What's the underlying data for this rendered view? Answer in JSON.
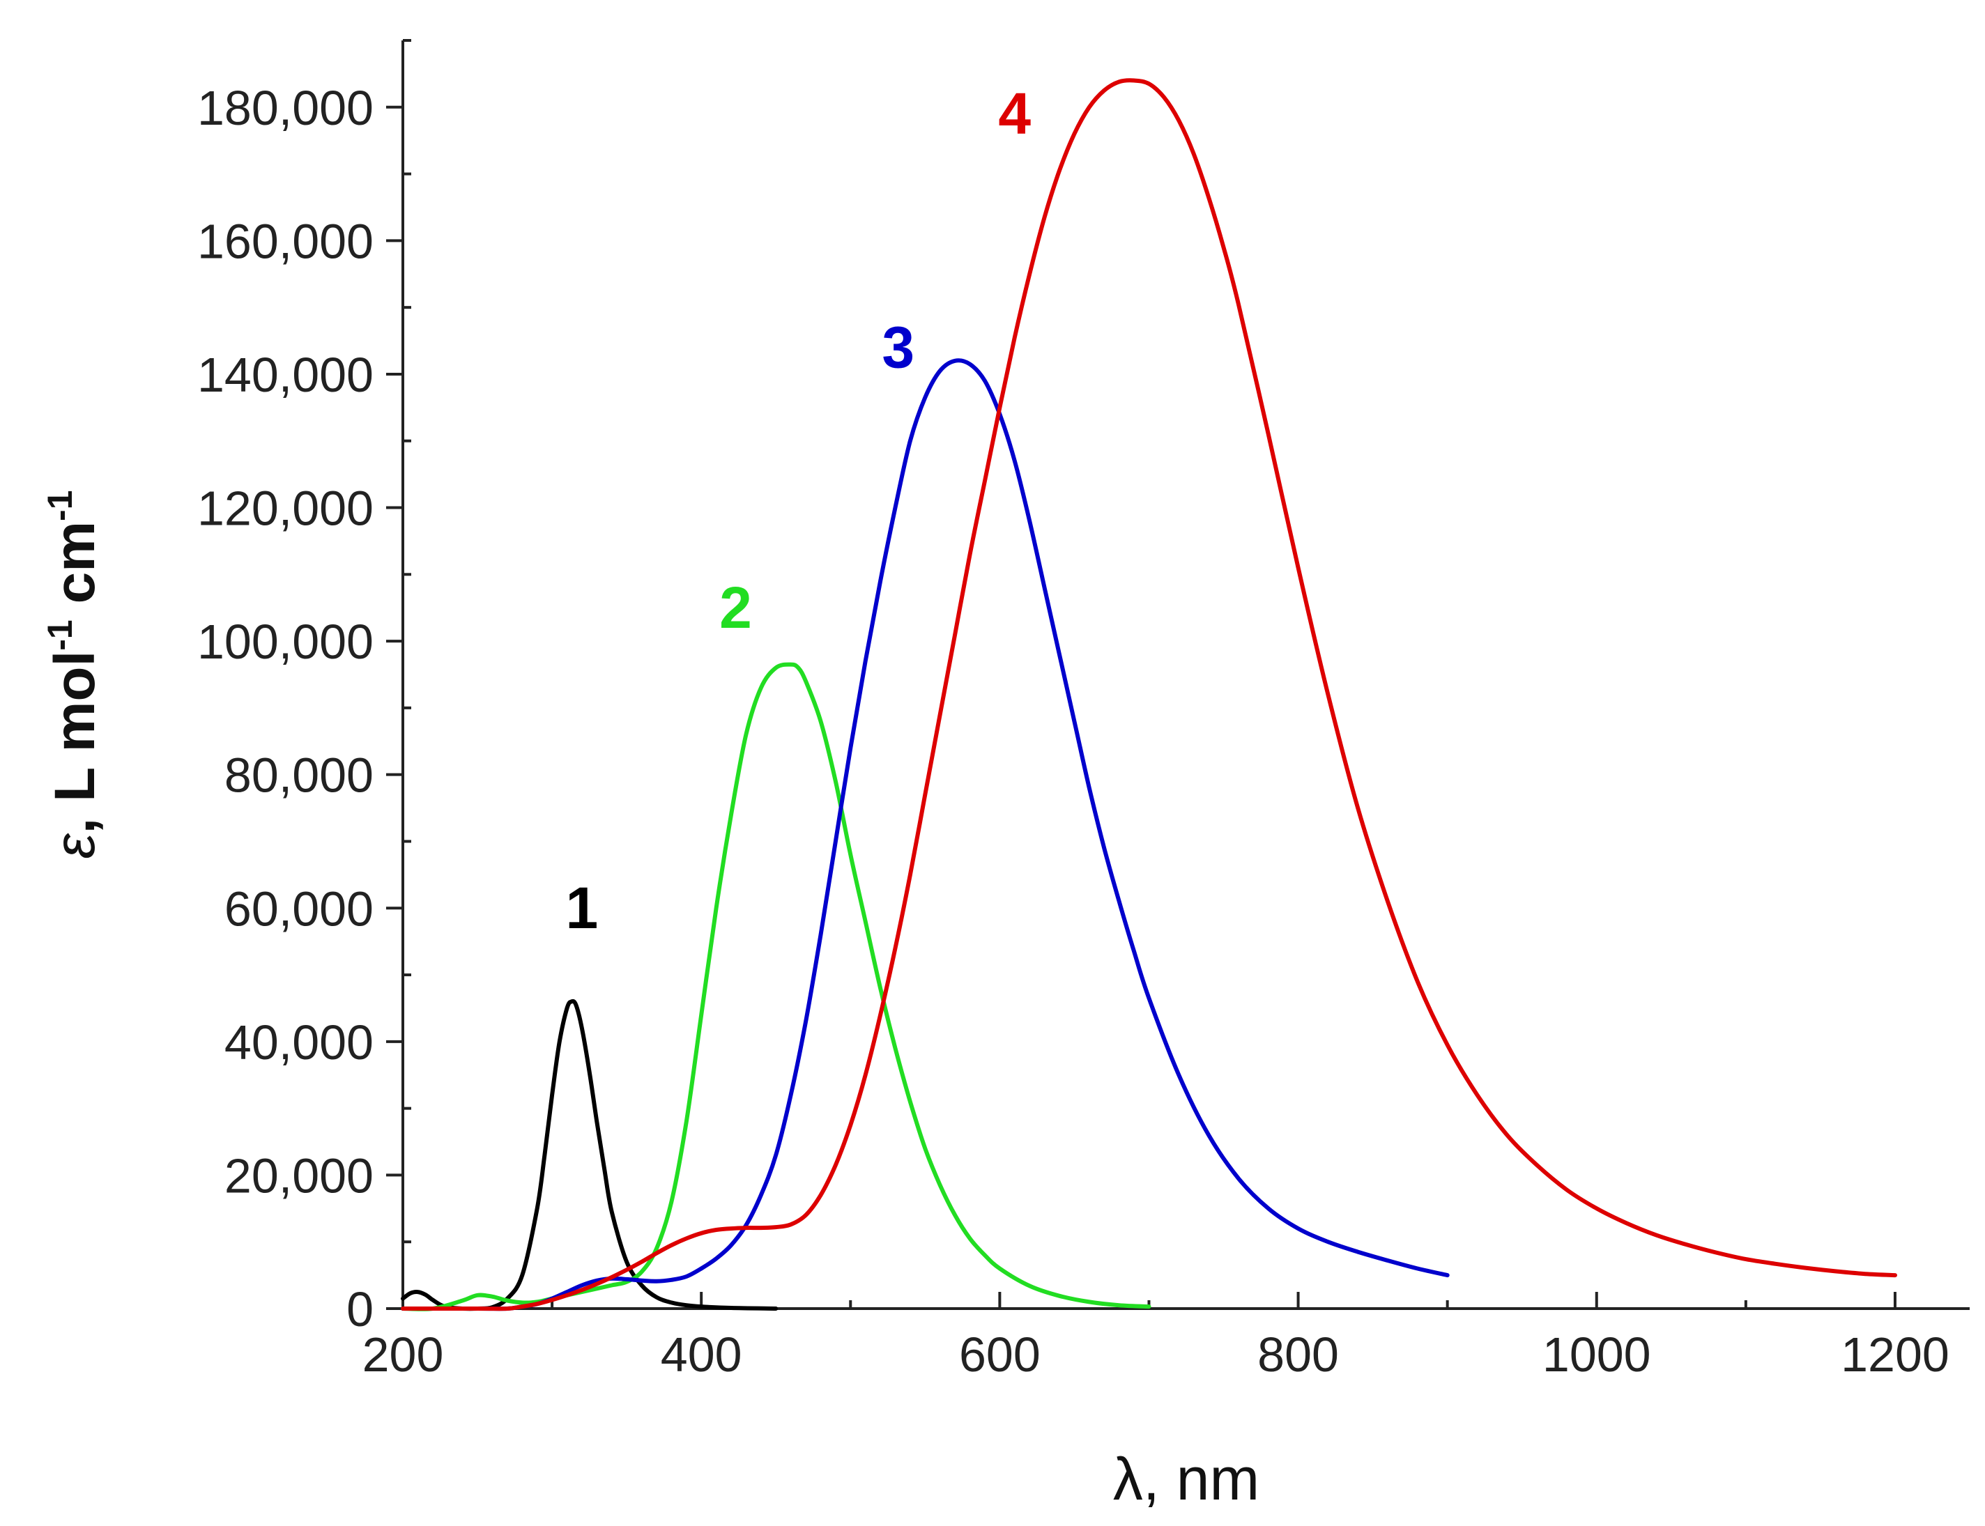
{
  "chart_data": {
    "type": "line",
    "title": "",
    "xlabel": "λ, nm",
    "ylabel": {
      "epsilon": "ε",
      "main": ", L mol",
      "sup1": "-1",
      "unit": " cm",
      "sup2": "-1"
    },
    "xlim": [
      200,
      1250
    ],
    "ylim": [
      0,
      190000
    ],
    "x_ticks": [
      200,
      400,
      600,
      800,
      1000,
      1200
    ],
    "x_tick_labels": [
      "200",
      "400",
      "600",
      "800",
      "1000",
      "1200"
    ],
    "x_minor_step": 100,
    "y_ticks": [
      0,
      20000,
      40000,
      60000,
      80000,
      100000,
      120000,
      140000,
      160000,
      180000
    ],
    "y_tick_labels": [
      "0",
      "20,000",
      "40,000",
      "60,000",
      "80,000",
      "100,000",
      "120,000",
      "140,000",
      "160,000",
      "180,000"
    ],
    "y_minor_step": 10000,
    "grid": false,
    "legend": "none",
    "series": [
      {
        "name": "1",
        "color": "#000000",
        "label_pos": {
          "x": 320,
          "y": 57000
        },
        "x": [
          200,
          205,
          210,
          215,
          220,
          225,
          230,
          240,
          250,
          260,
          270,
          280,
          290,
          295,
          300,
          305,
          310,
          313,
          316,
          320,
          325,
          330,
          335,
          340,
          350,
          360,
          370,
          380,
          390,
          400,
          420,
          450
        ],
        "y": [
          1500,
          2300,
          2500,
          2100,
          1300,
          600,
          200,
          0,
          0,
          200,
          1500,
          5000,
          15000,
          23000,
          32000,
          40000,
          45000,
          46000,
          45500,
          42000,
          35500,
          28000,
          21000,
          14500,
          7000,
          3500,
          1700,
          900,
          500,
          300,
          100,
          0
        ]
      },
      {
        "name": "2",
        "color": "#22dd22",
        "label_pos": {
          "x": 423,
          "y": 102000
        },
        "x": [
          200,
          220,
          240,
          250,
          260,
          270,
          280,
          290,
          300,
          310,
          320,
          330,
          340,
          350,
          360,
          370,
          380,
          390,
          400,
          410,
          420,
          430,
          440,
          450,
          460,
          465,
          470,
          480,
          490,
          500,
          510,
          520,
          530,
          540,
          550,
          560,
          570,
          580,
          590,
          600,
          620,
          640,
          660,
          680,
          700
        ],
        "y": [
          0,
          0,
          1200,
          2000,
          1800,
          1200,
          900,
          1000,
          1500,
          2000,
          2500,
          3000,
          3500,
          4000,
          5500,
          9000,
          16000,
          28000,
          44000,
          60000,
          74000,
          86000,
          93000,
          96000,
          96500,
          96000,
          94000,
          88000,
          79000,
          68000,
          58000,
          48000,
          39000,
          31000,
          24000,
          18500,
          14000,
          10500,
          8000,
          6000,
          3400,
          1900,
          1000,
          500,
          300
        ]
      },
      {
        "name": "3",
        "color": "#0000cc",
        "label_pos": {
          "x": 532,
          "y": 141000
        },
        "x": [
          200,
          250,
          270,
          280,
          290,
          300,
          310,
          320,
          330,
          340,
          350,
          360,
          370,
          380,
          390,
          400,
          410,
          420,
          430,
          440,
          450,
          460,
          470,
          480,
          490,
          500,
          510,
          520,
          530,
          540,
          550,
          560,
          570,
          580,
          590,
          600,
          610,
          620,
          630,
          640,
          650,
          660,
          670,
          680,
          690,
          700,
          720,
          740,
          760,
          780,
          800,
          820,
          840,
          860,
          880,
          900
        ],
        "y": [
          0,
          0,
          0,
          300,
          700,
          1500,
          2500,
          3500,
          4200,
          4500,
          4400,
          4200,
          4100,
          4300,
          4800,
          6000,
          7500,
          9500,
          12500,
          17000,
          23000,
          32000,
          43000,
          56000,
          70000,
          84000,
          97000,
          109000,
          120000,
          130000,
          136500,
          140500,
          142000,
          141500,
          139000,
          134000,
          127000,
          118000,
          108000,
          98000,
          88000,
          78000,
          69000,
          61000,
          53500,
          46500,
          35000,
          26000,
          19500,
          15000,
          12000,
          10000,
          8500,
          7200,
          6000,
          5000
        ]
      },
      {
        "name": "4",
        "color": "#dd0000",
        "label_pos": {
          "x": 610,
          "y": 176000
        },
        "x": [
          200,
          250,
          270,
          280,
          290,
          300,
          310,
          320,
          330,
          340,
          350,
          360,
          370,
          380,
          390,
          400,
          410,
          420,
          430,
          440,
          450,
          460,
          470,
          480,
          490,
          500,
          510,
          520,
          530,
          540,
          550,
          560,
          570,
          580,
          590,
          600,
          610,
          620,
          630,
          640,
          650,
          660,
          670,
          680,
          690,
          700,
          710,
          720,
          730,
          740,
          750,
          760,
          780,
          800,
          820,
          840,
          860,
          880,
          900,
          920,
          940,
          960,
          980,
          1000,
          1020,
          1040,
          1060,
          1080,
          1100,
          1120,
          1140,
          1160,
          1180,
          1200
        ],
        "y": [
          0,
          0,
          0,
          300,
          700,
          1300,
          2000,
          2800,
          3700,
          4700,
          5800,
          7000,
          8300,
          9500,
          10500,
          11300,
          11800,
          12000,
          12100,
          12100,
          12200,
          12600,
          14000,
          17000,
          21500,
          27500,
          35000,
          44000,
          54000,
          65000,
          77000,
          89000,
          101000,
          113000,
          124000,
          135000,
          145500,
          155000,
          163500,
          170500,
          176000,
          180000,
          182500,
          183800,
          184000,
          183500,
          181500,
          178000,
          173000,
          166500,
          159000,
          150500,
          131000,
          111000,
          92000,
          75000,
          61000,
          49000,
          39500,
          32000,
          26000,
          21500,
          17800,
          15000,
          12800,
          11000,
          9600,
          8400,
          7400,
          6700,
          6100,
          5600,
          5200,
          5000
        ]
      }
    ]
  }
}
